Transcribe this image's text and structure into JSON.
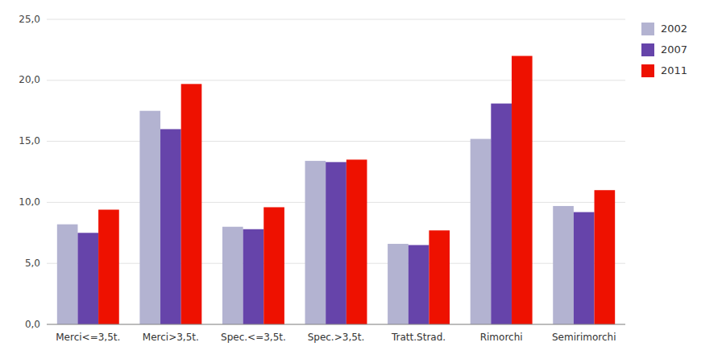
{
  "chart_data": {
    "type": "bar",
    "categories": [
      "Merci<=3,5t.",
      "Merci>3,5t.",
      "Spec.<=3,5t.",
      "Spec.>3,5t.",
      "Tratt.Strad.",
      "Rimorchi",
      "Semirimorchi"
    ],
    "series": [
      {
        "name": "2002",
        "color": "#b3b3d1",
        "values": [
          8.2,
          17.5,
          8.0,
          13.4,
          6.6,
          15.2,
          9.7
        ]
      },
      {
        "name": "2007",
        "color": "#6644aa",
        "values": [
          7.5,
          16.0,
          7.8,
          13.3,
          6.5,
          18.1,
          9.2
        ]
      },
      {
        "name": "2011",
        "color": "#ee1100",
        "values": [
          9.4,
          19.7,
          9.6,
          13.5,
          7.7,
          22.0,
          11.0
        ]
      }
    ],
    "ylim": [
      0,
      25
    ],
    "yticks": [
      {
        "value": 0,
        "label": "0,0"
      },
      {
        "value": 5,
        "label": "5,0"
      },
      {
        "value": 10,
        "label": "10,0"
      },
      {
        "value": 15,
        "label": "15,0"
      },
      {
        "value": 20,
        "label": "20,0"
      },
      {
        "value": 25,
        "label": "25,0"
      }
    ],
    "grid": true,
    "legend": "right"
  }
}
